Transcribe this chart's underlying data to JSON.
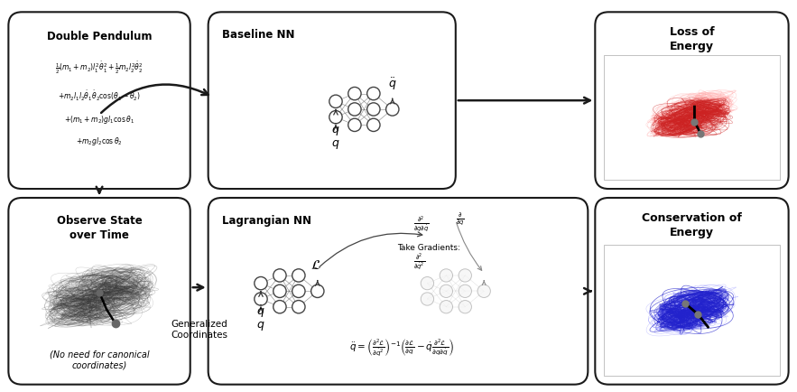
{
  "bg_color": "#ffffff",
  "box_edge_color": "#222222",
  "dp_title": "Double Pendulum",
  "dp_eq1": "$\\frac{1}{2}(m_1+m_2)l_1^2\\dot{\\theta}_1^2+\\frac{1}{2}m_2l_2^2\\dot{\\theta}_2^2$",
  "dp_eq2": "$+m_2l_1l_2\\dot{\\theta}_1\\dot{\\theta}_2\\cos(\\theta_1-\\theta_2)$",
  "dp_eq3": "$+(m_1+m_2)gl_1\\cos\\theta_1$",
  "dp_eq4": "$+m_2gl_2\\cos\\theta_2$",
  "obs_title": "Observe State\nover Time",
  "obs_subtitle": "(No need for canonical\ncoordinates)",
  "bnn_title": "Baseline NN",
  "bnn_output": "$\\ddot{q}$",
  "bnn_input1": "$q$",
  "bnn_input2": "$\\dot{q}$",
  "lnn_title": "Lagrangian NN",
  "lnn_output": "$\\mathcal{L}$",
  "lnn_input1": "$q$",
  "lnn_input2": "$\\dot{q}$",
  "lnn_grad_label": "Take Gradients:",
  "lnn_eq": "$\\ddot{q}=\\left(\\frac{\\partial^2\\mathcal{L}}{\\partial\\dot{q}^2}\\right)^{-1}\\left(\\frac{\\partial\\mathcal{L}}{\\partial q}-\\dot{q}\\frac{\\partial^2\\mathcal{L}}{\\partial q\\partial\\dot{q}}\\right)$",
  "gen_coord_label": "Generalized\nCoordinates",
  "loss_title": "Loss of\nEnergy",
  "cons_title": "Conservation of\nEnergy"
}
